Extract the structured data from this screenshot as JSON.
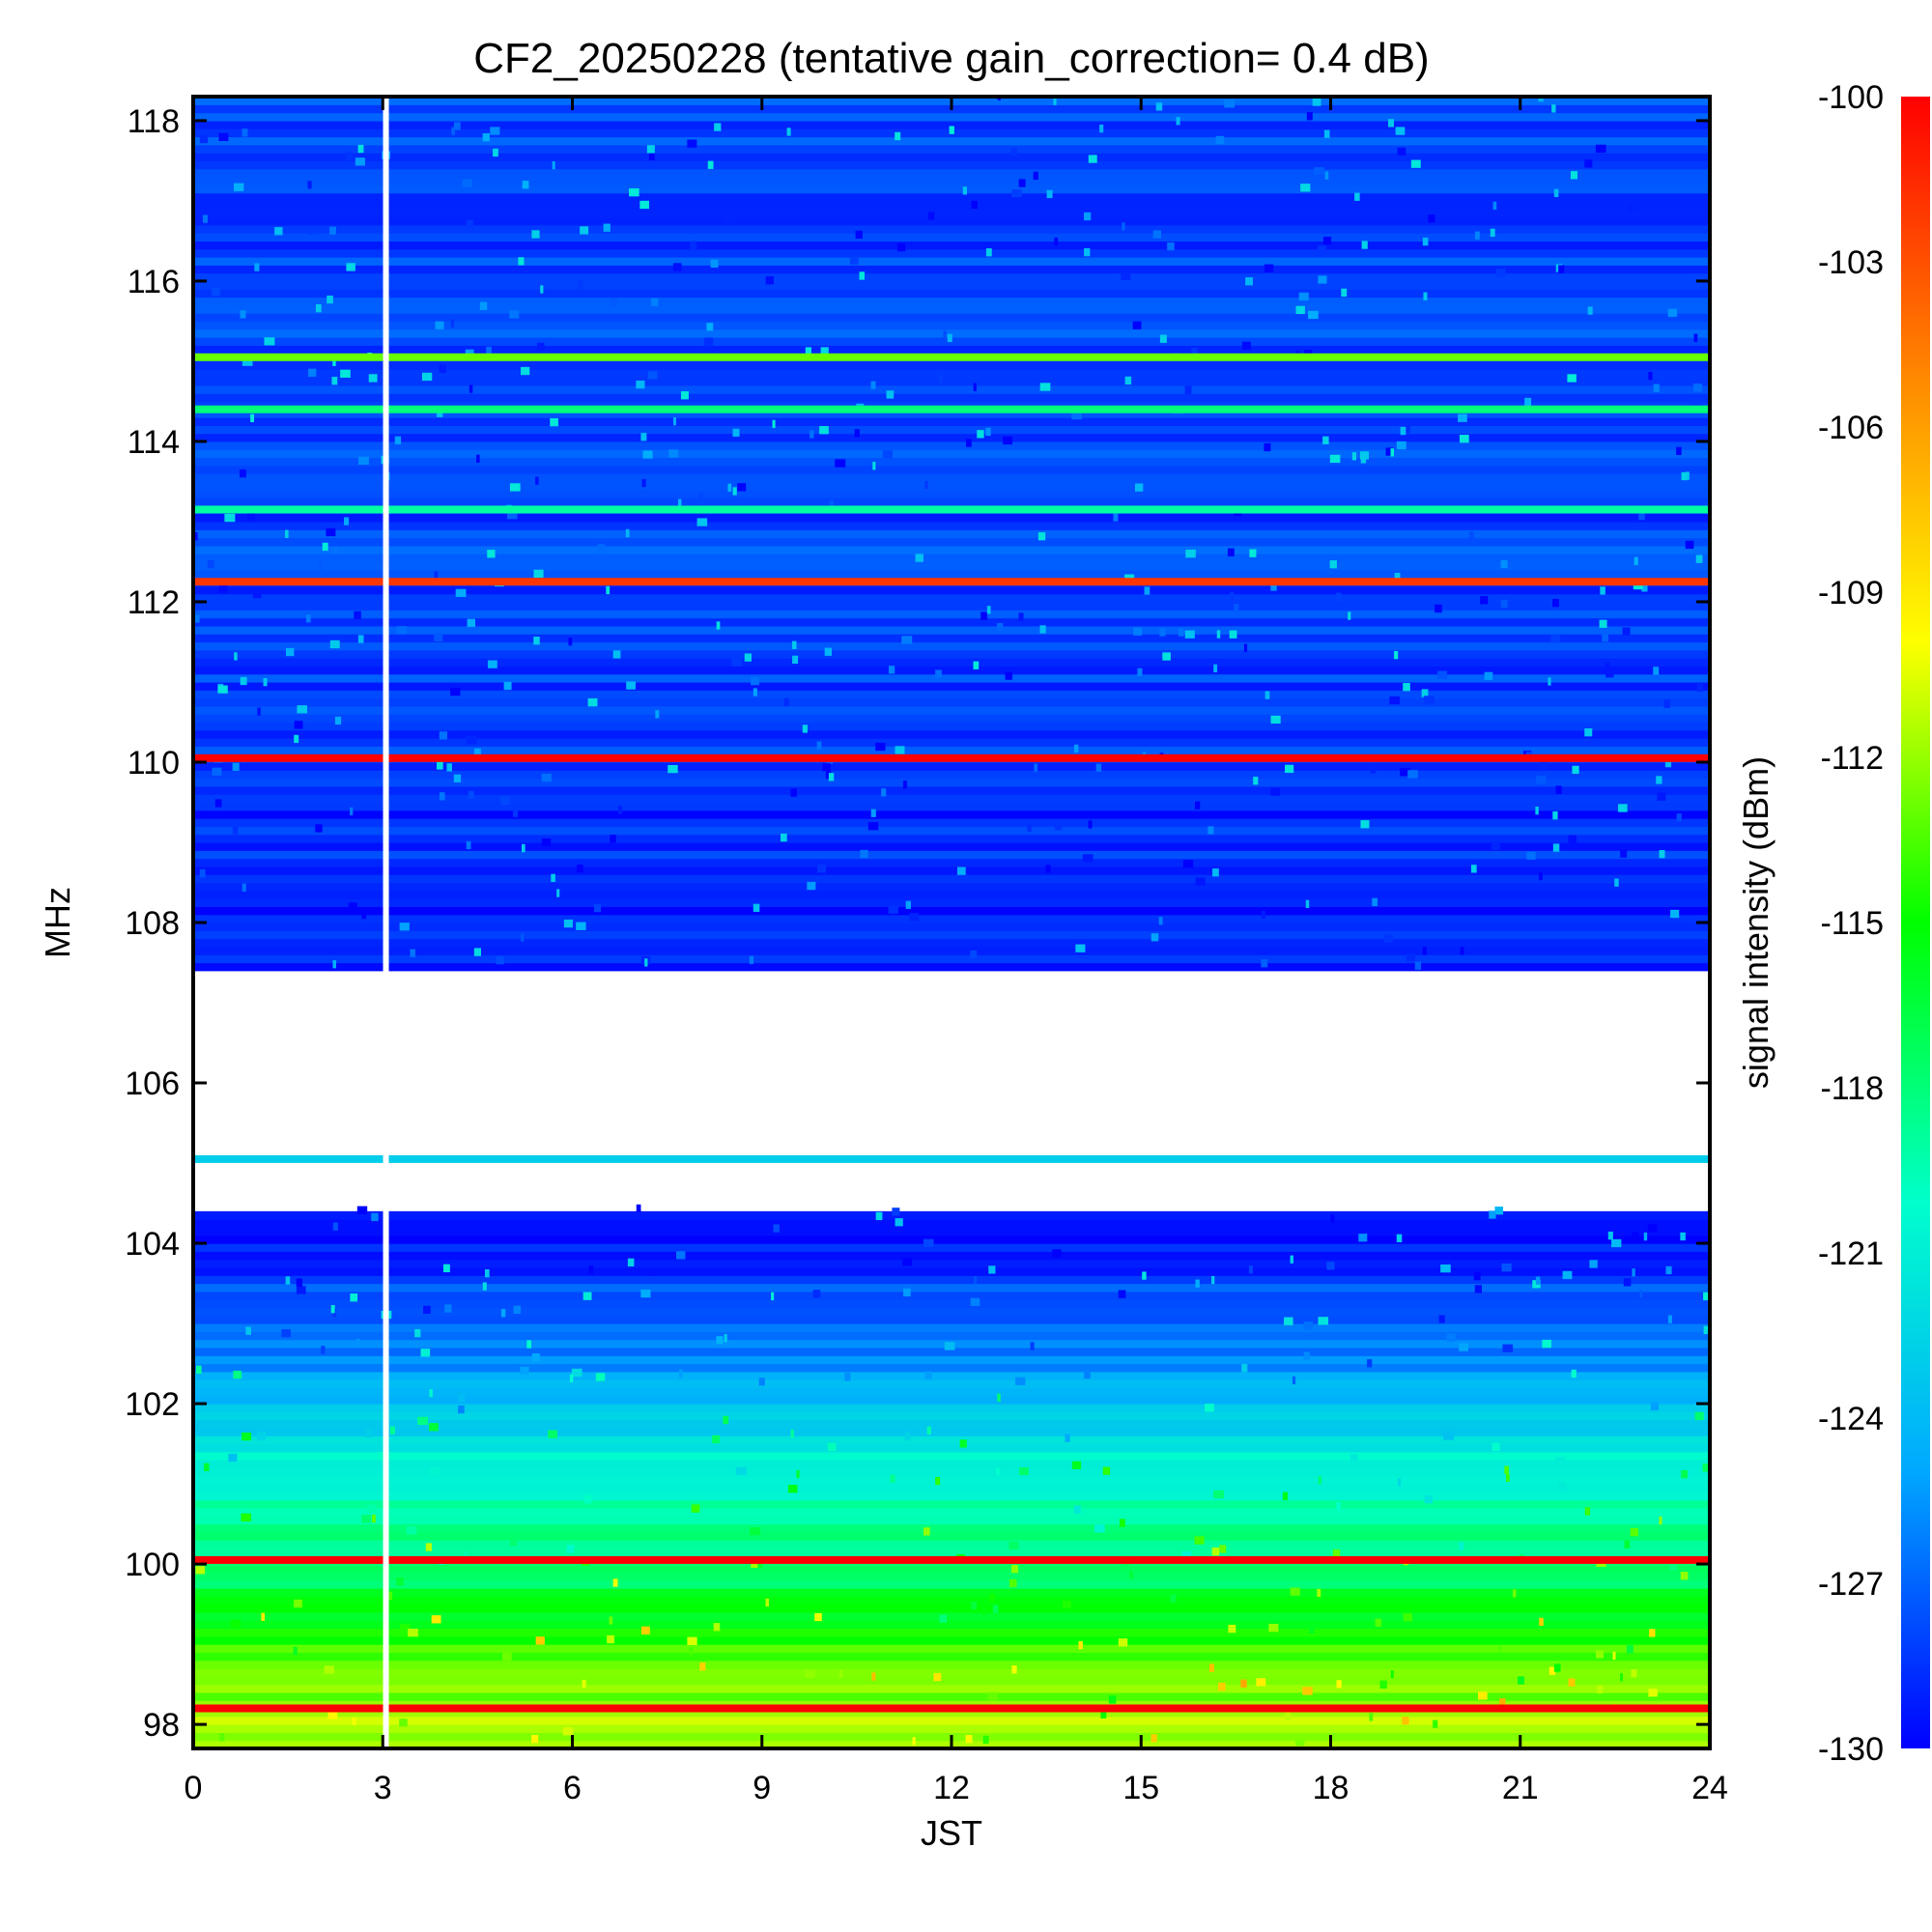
{
  "chart_data": {
    "type": "heatmap",
    "title": "CF2_20250228 (tentative gain_correction=  0.4 dB)",
    "xlabel": "JST",
    "ylabel": "MHz",
    "colorbar_label": "signal intensity (dBm)",
    "xlim": [
      0,
      24
    ],
    "ylim": [
      97.7,
      118.3
    ],
    "xticks": [
      0,
      3,
      6,
      9,
      12,
      15,
      18,
      21,
      24
    ],
    "yticks": [
      98,
      100,
      102,
      104,
      106,
      108,
      110,
      112,
      114,
      116,
      118
    ],
    "xtick_labels": [
      "0",
      "3",
      "6",
      "9",
      "12",
      "15",
      "18",
      "21",
      "24"
    ],
    "ytick_labels": [
      "98",
      "100",
      "102",
      "104",
      "106",
      "108",
      "110",
      "112",
      "114",
      "116",
      "118"
    ],
    "colorbar_ticks": [
      -100,
      -103,
      -106,
      -109,
      -112,
      -115,
      -118,
      -121,
      -124,
      -127,
      -130
    ],
    "colorbar_tick_labels": [
      "-100",
      "-103",
      "-106",
      "-109",
      "-112",
      "-115",
      "-118",
      "-121",
      "-124",
      "-127",
      "-130"
    ],
    "colorbar_range": [
      -130,
      -100
    ],
    "colormap": [
      "#0000ff",
      "#00aaff",
      "#00ffcc",
      "#00ff00",
      "#ffff00",
      "#ff8800",
      "#ff0000"
    ],
    "data_gap_jst": 3.05,
    "strong_signals": [
      {
        "freq_mhz": 98.2,
        "dbm": -100
      },
      {
        "freq_mhz": 100.05,
        "dbm": -100
      },
      {
        "freq_mhz": 105.05,
        "dbm": -123
      },
      {
        "freq_mhz": 110.05,
        "dbm": -100
      },
      {
        "freq_mhz": 112.25,
        "dbm": -102
      },
      {
        "freq_mhz": 113.15,
        "dbm": -119
      },
      {
        "freq_mhz": 114.4,
        "dbm": -118
      },
      {
        "freq_mhz": 115.05,
        "dbm": -113
      }
    ],
    "background_profile": [
      {
        "freq_mhz": 98.0,
        "dbm": -112
      },
      {
        "freq_mhz": 99.0,
        "dbm": -114
      },
      {
        "freq_mhz": 100.0,
        "dbm": -118
      },
      {
        "freq_mhz": 101.0,
        "dbm": -120
      },
      {
        "freq_mhz": 102.0,
        "dbm": -124
      },
      {
        "freq_mhz": 103.0,
        "dbm": -127
      },
      {
        "freq_mhz": 104.0,
        "dbm": -129
      },
      {
        "freq_mhz": 108.0,
        "dbm": -129
      },
      {
        "freq_mhz": 112.0,
        "dbm": -128
      },
      {
        "freq_mhz": 118.0,
        "dbm": -128
      }
    ],
    "no_data_band_mhz": [
      104.4,
      107.4
    ]
  }
}
